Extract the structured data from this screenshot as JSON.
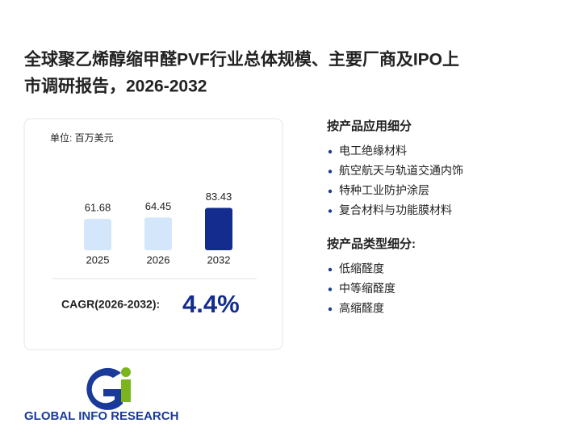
{
  "title": [
    "全球聚乙烯醇缩甲醛PVF行业总体规模、主要厂商及IPO上",
    "市调研报告，2026-2032"
  ],
  "chart_data": {
    "type": "bar",
    "unit": "单位: 百万美元",
    "categories": [
      "2025",
      "2026",
      "2032"
    ],
    "values": [
      61.68,
      64.45,
      83.43
    ],
    "colors": [
      "#d3e6fa",
      "#d3e6fa",
      "#142c8e"
    ]
  },
  "cagr": {
    "label": "CAGR(2026-2032):",
    "value": "4.4%"
  },
  "sections": [
    {
      "heading": "按产品应用细分",
      "items": [
        "电工绝缘材料",
        "航空航天与轨道交通内饰",
        "特种工业防护涂层",
        "复合材料与功能膜材料"
      ]
    },
    {
      "heading": "按产品类型细分:",
      "items": [
        "低缩醛度",
        "中等缩醛度",
        "高缩醛度"
      ]
    }
  ],
  "logo": "GLOBAL INFO RESEARCH"
}
